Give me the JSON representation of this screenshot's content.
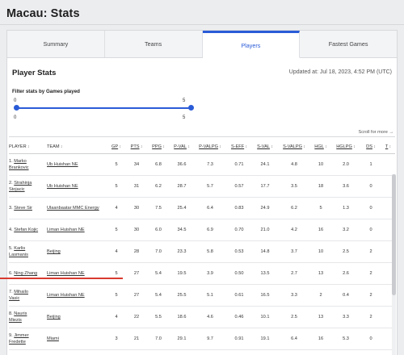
{
  "page": {
    "title": "Macau: Stats"
  },
  "tabs": [
    {
      "label": "Summary",
      "active": false
    },
    {
      "label": "Teams",
      "active": false
    },
    {
      "label": "Players",
      "active": true
    },
    {
      "label": "Fastest Games",
      "active": false
    }
  ],
  "player_stats": {
    "title": "Player Stats",
    "updated": "Updated at: Jul 18, 2023, 4:52 PM (UTC)",
    "filter_label": "Filter stats by Games played",
    "range": {
      "min_top": "0",
      "max_top": "5",
      "min_bottom": "0",
      "max_bottom": "5",
      "selected_min": 0,
      "selected_max": 5
    },
    "scroll_hint": "Scroll for more →",
    "columns": [
      "PLAYER",
      "TEAM",
      "GP",
      "PTS",
      "PPG",
      "P-VAL",
      "P-VALPG",
      "S-EFF",
      "S-VAL",
      "S-VALPG",
      "HGL",
      "HGLPG",
      "DS",
      "T"
    ],
    "rows": [
      {
        "rank": "1.",
        "first": "Marko",
        "last": "Brankovic",
        "team": "Ub Huishan NE",
        "gp": "5",
        "pts": "34",
        "ppg": "6.8",
        "pval": "36.6",
        "pvalpg": "7.3",
        "seff": "0.71",
        "sval": "24.1",
        "svalpg": "4.8",
        "hgl": "10",
        "hglpg": "2.0",
        "ds": "1"
      },
      {
        "rank": "2.",
        "first": "Strahinja",
        "last": "Stojacic",
        "team": "Ub Huishan NE",
        "gp": "5",
        "pts": "31",
        "ppg": "6.2",
        "pval": "28.7",
        "pvalpg": "5.7",
        "seff": "0.57",
        "sval": "17.7",
        "svalpg": "3.5",
        "hgl": "18",
        "hglpg": "3.6",
        "ds": "0"
      },
      {
        "rank": "3.",
        "first": "Steve Sir",
        "last": "",
        "team": "Ulaanbaatar MMC Energy",
        "gp": "4",
        "pts": "30",
        "ppg": "7.5",
        "pval": "25.4",
        "pvalpg": "6.4",
        "seff": "0.83",
        "sval": "24.9",
        "svalpg": "6.2",
        "hgl": "5",
        "hglpg": "1.3",
        "ds": "0"
      },
      {
        "rank": "4.",
        "first": "Stefan Kojic",
        "last": "",
        "team": "Liman Huishan NE",
        "gp": "5",
        "pts": "30",
        "ppg": "6.0",
        "pval": "34.5",
        "pvalpg": "6.9",
        "seff": "0.70",
        "sval": "21.0",
        "svalpg": "4.2",
        "hgl": "16",
        "hglpg": "3.2",
        "ds": "0"
      },
      {
        "rank": "5.",
        "first": "Karlis",
        "last": "Lasmanis",
        "team": "Beijing",
        "gp": "4",
        "pts": "28",
        "ppg": "7.0",
        "pval": "23.3",
        "pvalpg": "5.8",
        "seff": "0.53",
        "sval": "14.8",
        "svalpg": "3.7",
        "hgl": "10",
        "hglpg": "2.5",
        "ds": "2"
      },
      {
        "rank": "6.",
        "first": "Ning Zhang",
        "last": "",
        "team": "Liman Huishan NE",
        "gp": "5",
        "pts": "27",
        "ppg": "5.4",
        "pval": "19.5",
        "pvalpg": "3.9",
        "seff": "0.50",
        "sval": "13.5",
        "svalpg": "2.7",
        "hgl": "13",
        "hglpg": "2.6",
        "ds": "2"
      },
      {
        "rank": "7.",
        "first": "Mihailo",
        "last": "Vasic",
        "team": "Liman Huishan NE",
        "gp": "5",
        "pts": "27",
        "ppg": "5.4",
        "pval": "25.5",
        "pvalpg": "5.1",
        "seff": "0.61",
        "sval": "16.5",
        "svalpg": "3.3",
        "hgl": "2",
        "hglpg": "0.4",
        "ds": "2"
      },
      {
        "rank": "8.",
        "first": "Nauris",
        "last": "Miezis",
        "team": "Beijing",
        "gp": "4",
        "pts": "22",
        "ppg": "5.5",
        "pval": "18.6",
        "pvalpg": "4.6",
        "seff": "0.46",
        "sval": "10.1",
        "svalpg": "2.5",
        "hgl": "13",
        "hglpg": "3.3",
        "ds": "2"
      },
      {
        "rank": "9.",
        "first": "Jimmer",
        "last": "Fredette",
        "team": "Miami",
        "gp": "3",
        "pts": "21",
        "ppg": "7.0",
        "pval": "29.1",
        "pvalpg": "9.7",
        "seff": "0.91",
        "sval": "19.1",
        "svalpg": "6.4",
        "hgl": "16",
        "hglpg": "5.3",
        "ds": "0"
      }
    ]
  },
  "colors": {
    "accent": "#2a5bd7",
    "highlight_line": "#d93a2f"
  }
}
